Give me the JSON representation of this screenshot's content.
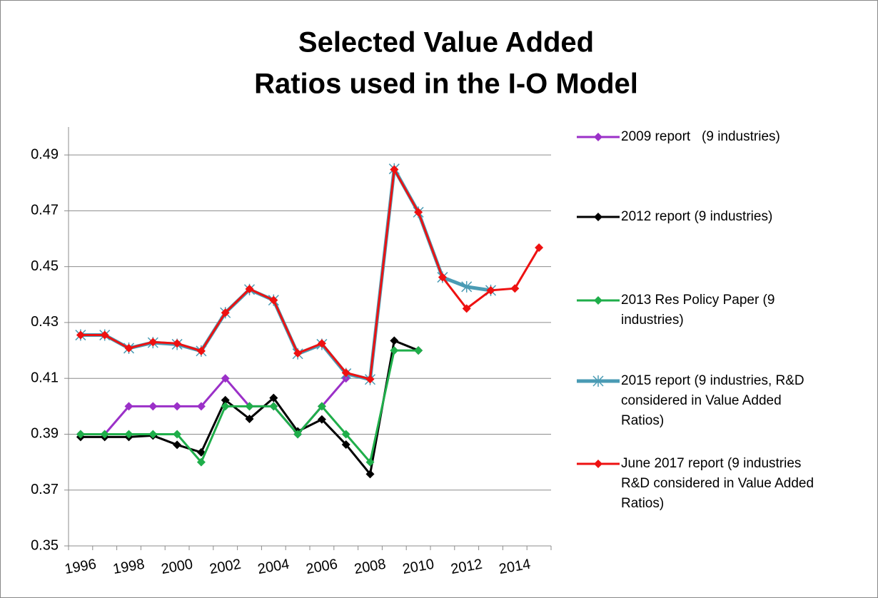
{
  "chart_data": {
    "type": "line",
    "title": [
      "Selected Value Added",
      "Ratios used in the I-O Model"
    ],
    "categories": [
      "1996",
      null,
      "1998",
      null,
      "2000",
      null,
      "2002",
      null,
      "2004",
      null,
      "2006",
      null,
      "2008",
      null,
      "2010",
      null,
      "2012",
      null,
      "2014",
      null
    ],
    "ylim": [
      0.35,
      0.5
    ],
    "yticks": [
      0.35,
      0.37,
      0.39,
      0.41,
      0.43,
      0.45,
      0.47,
      0.49
    ],
    "grid": true,
    "series": [
      {
        "name": "2009 report   (9 industries)",
        "color": "#9b30c8",
        "marker": "diamond",
        "values": [
          0.39,
          0.39,
          0.4,
          0.4,
          0.4,
          0.4,
          0.41,
          0.4,
          0.4,
          0.39,
          0.4,
          0.41,
          null,
          null,
          null,
          null,
          null,
          null,
          null,
          null
        ]
      },
      {
        "name": "2012 report (9 industries)",
        "color": "#000000",
        "marker": "diamond",
        "values": [
          0.389,
          0.389,
          0.389,
          0.3895,
          0.3862,
          0.3835,
          0.4022,
          0.3955,
          0.403,
          0.391,
          0.3953,
          0.3863,
          0.3757,
          0.4235,
          0.42,
          null,
          null,
          null,
          null,
          null
        ]
      },
      {
        "name": "2013 Res Policy Paper (9 industries)",
        "color": "#1fae4a",
        "marker": "diamond",
        "values": [
          0.39,
          0.39,
          0.39,
          0.39,
          0.39,
          0.38,
          0.4,
          0.4,
          0.4,
          0.39,
          0.4,
          0.39,
          0.38,
          0.42,
          0.42,
          null,
          null,
          null,
          null,
          null
        ]
      },
      {
        "name": "2015 report (9 industries, R&D considered in Value Added Ratios)",
        "color": "#4a9bb4",
        "marker": "star",
        "values": [
          0.4255,
          0.4255,
          0.4208,
          0.4228,
          0.4222,
          0.4198,
          0.4335,
          0.4418,
          0.438,
          0.4188,
          0.4222,
          0.4117,
          0.4096,
          0.485,
          0.4695,
          0.4462,
          0.4428,
          0.4415,
          null,
          null
        ]
      },
      {
        "name": "June 2017 report (9 industries R&D considered in Value Added Ratios)",
        "color": "#ee1111",
        "marker": "diamond",
        "values": [
          0.4255,
          0.4255,
          0.4208,
          0.423,
          0.4225,
          0.4198,
          0.4335,
          0.442,
          0.438,
          0.419,
          0.4225,
          0.412,
          0.4097,
          0.4848,
          0.4695,
          0.4462,
          0.435,
          0.4415,
          0.4422,
          0.4568
        ]
      }
    ]
  }
}
